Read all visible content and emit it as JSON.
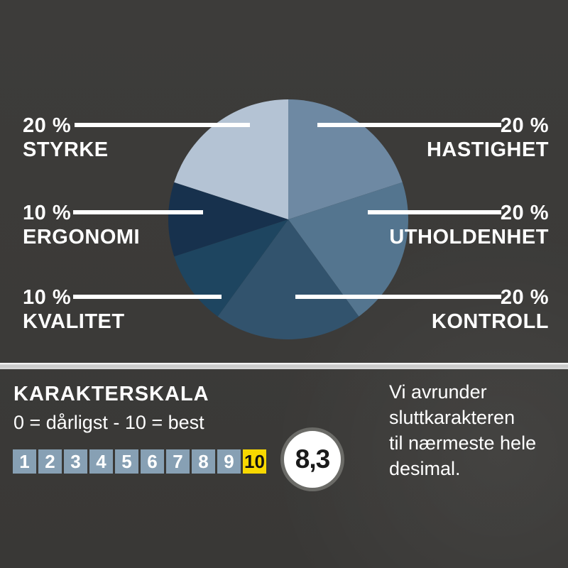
{
  "chart_data": {
    "type": "pie",
    "unit": "%",
    "start_angle_deg": 0,
    "direction": "clockwise",
    "slices": [
      {
        "label": "HASTIGHET",
        "value": 20,
        "color": "#6e89a3"
      },
      {
        "label": "UTHOLDENHET",
        "value": 20,
        "color": "#54758f"
      },
      {
        "label": "KONTROLL",
        "value": 20,
        "color": "#32536d"
      },
      {
        "label": "KVALITET",
        "value": 10,
        "color": "#1e4560"
      },
      {
        "label": "ERGONOMI",
        "value": 10,
        "color": "#17314d"
      },
      {
        "label": "STYRKE",
        "value": 20,
        "color": "#b4c3d4"
      }
    ]
  },
  "pie_labels": {
    "styrke": {
      "pct": "20 %",
      "name": "STYRKE"
    },
    "hastighet": {
      "pct": "20 %",
      "name": "HASTIGHET"
    },
    "ergonomi": {
      "pct": "10 %",
      "name": "ERGONOMI"
    },
    "utholdenhet": {
      "pct": "20 %",
      "name": "UTHOLDENHET"
    },
    "kvalitet": {
      "pct": "10 %",
      "name": "KVALITET"
    },
    "kontroll": {
      "pct": "20 %",
      "name": "KONTROLL"
    }
  },
  "karakterskala": {
    "title": "KARAKTERSKALA",
    "subtitle": "0 = dårligst - 10 = best",
    "scale_numbers": [
      "1",
      "2",
      "3",
      "4",
      "5",
      "6",
      "7",
      "8",
      "9",
      "10"
    ],
    "highlight_number": "10",
    "score": "8,3",
    "note": "Vi avrunder\nsluttkarakteren\ntil nærmeste hele\ndesimal."
  },
  "colors": {
    "background": "#3b3a38",
    "divider": "#d4d4d4",
    "text": "#ffffff",
    "leader_line": "#ffffff",
    "scale_box": "#87a0b4",
    "scale_box_highlight": "#f8d800",
    "score_circle_fill": "#ffffff",
    "score_circle_ring": "#6b6b67",
    "score_text": "#1a1a1a"
  }
}
